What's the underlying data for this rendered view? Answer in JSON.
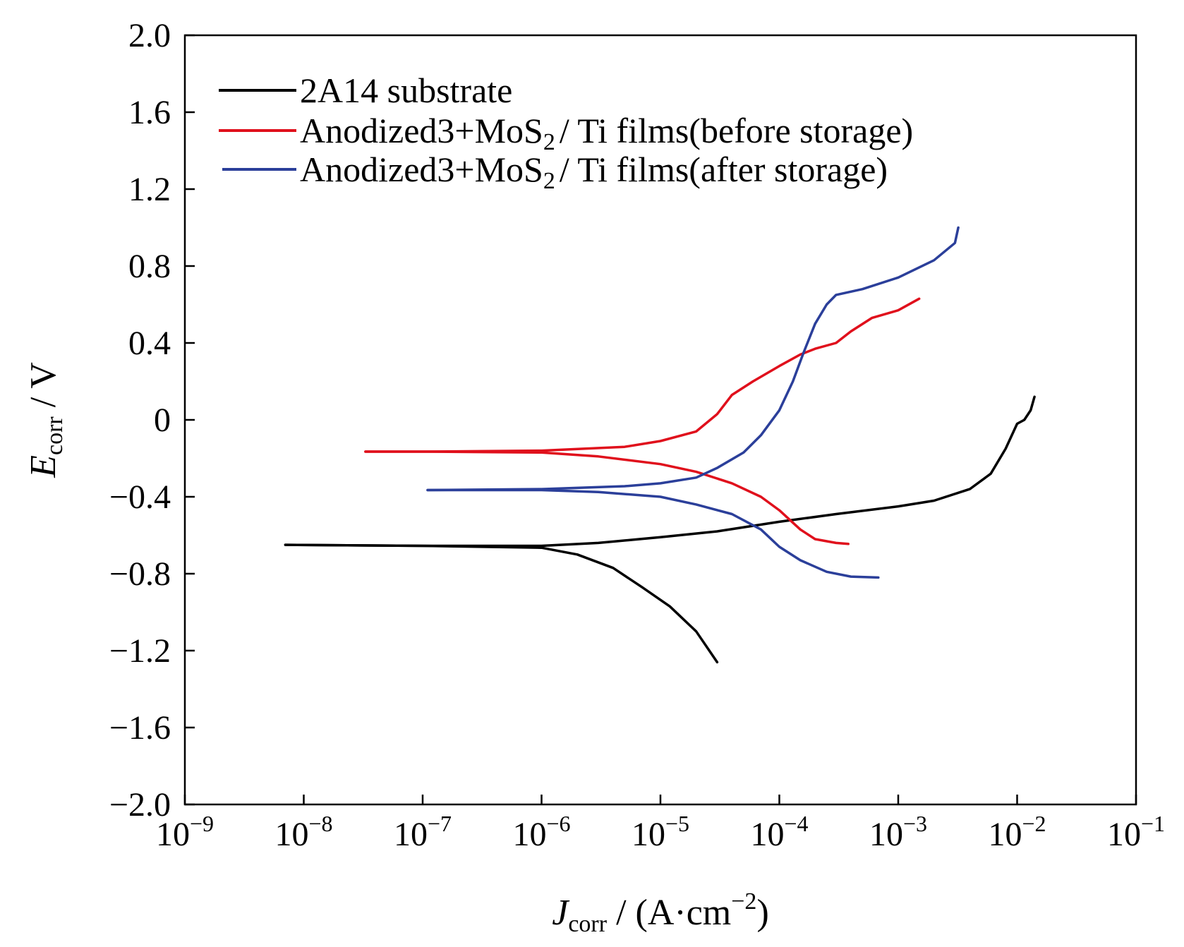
{
  "chart_data": {
    "type": "line",
    "title": "",
    "x_scale": "log",
    "xlim": [
      1e-09,
      0.1
    ],
    "ylim": [
      -2.0,
      2.0
    ],
    "x_ticks": [
      {
        "value": 1e-09,
        "base": "10",
        "exp": "−9"
      },
      {
        "value": 1e-08,
        "base": "10",
        "exp": "−8"
      },
      {
        "value": 1e-07,
        "base": "10",
        "exp": "−7"
      },
      {
        "value": 1e-06,
        "base": "10",
        "exp": "−6"
      },
      {
        "value": 1e-05,
        "base": "10",
        "exp": "−5"
      },
      {
        "value": 0.0001,
        "base": "10",
        "exp": "−4"
      },
      {
        "value": 0.001,
        "base": "10",
        "exp": "−3"
      },
      {
        "value": 0.01,
        "base": "10",
        "exp": "−2"
      },
      {
        "value": 0.1,
        "base": "10",
        "exp": "−1"
      }
    ],
    "y_ticks": [
      {
        "value": 2.0,
        "label": "2.0"
      },
      {
        "value": 1.6,
        "label": "1.6"
      },
      {
        "value": 1.2,
        "label": "1.2"
      },
      {
        "value": 0.8,
        "label": "0.8"
      },
      {
        "value": 0.4,
        "label": "0.4"
      },
      {
        "value": 0.0,
        "label": "0"
      },
      {
        "value": -0.4,
        "label": "−0.4"
      },
      {
        "value": -0.8,
        "label": "−0.8"
      },
      {
        "value": -1.2,
        "label": "−1.2"
      },
      {
        "value": -1.6,
        "label": "−1.6"
      },
      {
        "value": -2.0,
        "label": "−2.0"
      }
    ],
    "xlabel": {
      "main": "J",
      "sub": "corr",
      "rest": " / (A·cm",
      "sup": "−2",
      "end": ")"
    },
    "ylabel": {
      "main": "E",
      "sub": "corr",
      "rest": " / V"
    },
    "legend_position": "top-left",
    "series": [
      {
        "legend": {
          "text": "2A14 substrate"
        },
        "color": "#000000",
        "anodic": [
          [
            7e-09,
            -0.65
          ],
          [
            1e-07,
            -0.655
          ],
          [
            1e-06,
            -0.655
          ],
          [
            3e-06,
            -0.64
          ],
          [
            1e-05,
            -0.61
          ],
          [
            3e-05,
            -0.58
          ],
          [
            0.0001,
            -0.53
          ],
          [
            0.0003,
            -0.49
          ],
          [
            0.001,
            -0.45
          ],
          [
            0.002,
            -0.42
          ],
          [
            0.004,
            -0.36
          ],
          [
            0.006,
            -0.28
          ],
          [
            0.008,
            -0.15
          ],
          [
            0.01,
            -0.02
          ],
          [
            0.0115,
            0.0
          ],
          [
            0.013,
            0.05
          ],
          [
            0.014,
            0.12
          ]
        ],
        "cathodic": [
          [
            7e-09,
            -0.65
          ],
          [
            1e-07,
            -0.655
          ],
          [
            1e-06,
            -0.665
          ],
          [
            2e-06,
            -0.7
          ],
          [
            4e-06,
            -0.77
          ],
          [
            7e-06,
            -0.87
          ],
          [
            1.2e-05,
            -0.97
          ],
          [
            2e-05,
            -1.1
          ],
          [
            3e-05,
            -1.26
          ]
        ]
      },
      {
        "legend": {
          "pre": "Anodized3+MoS",
          "sub": "2",
          "post": "/ Ti films(before storage)"
        },
        "color": "#e0101c",
        "anodic": [
          [
            3.3e-08,
            -0.165
          ],
          [
            1e-07,
            -0.165
          ],
          [
            1e-06,
            -0.16
          ],
          [
            5e-06,
            -0.14
          ],
          [
            1e-05,
            -0.11
          ],
          [
            2e-05,
            -0.06
          ],
          [
            3e-05,
            0.03
          ],
          [
            4e-05,
            0.13
          ],
          [
            6e-05,
            0.2
          ],
          [
            0.0001,
            0.28
          ],
          [
            0.00015,
            0.34
          ],
          [
            0.0002,
            0.37
          ],
          [
            0.0003,
            0.4
          ],
          [
            0.0004,
            0.46
          ],
          [
            0.0006,
            0.53
          ],
          [
            0.001,
            0.57
          ],
          [
            0.0015,
            0.63
          ]
        ],
        "cathodic": [
          [
            3.3e-08,
            -0.165
          ],
          [
            1e-07,
            -0.165
          ],
          [
            1e-06,
            -0.17
          ],
          [
            3e-06,
            -0.19
          ],
          [
            1e-05,
            -0.23
          ],
          [
            2e-05,
            -0.27
          ],
          [
            4e-05,
            -0.33
          ],
          [
            7e-05,
            -0.4
          ],
          [
            0.0001,
            -0.47
          ],
          [
            0.00015,
            -0.57
          ],
          [
            0.0002,
            -0.62
          ],
          [
            0.0003,
            -0.64
          ],
          [
            0.00038,
            -0.645
          ]
        ]
      },
      {
        "legend": {
          "pre": "Anodized3+MoS",
          "sub": "2",
          "post": "/ Ti films(after storage)"
        },
        "color": "#2b3f9a",
        "anodic": [
          [
            1.1e-07,
            -0.365
          ],
          [
            1e-06,
            -0.36
          ],
          [
            5e-06,
            -0.345
          ],
          [
            1e-05,
            -0.33
          ],
          [
            2e-05,
            -0.3
          ],
          [
            3e-05,
            -0.25
          ],
          [
            5e-05,
            -0.17
          ],
          [
            7e-05,
            -0.08
          ],
          [
            0.0001,
            0.05
          ],
          [
            0.00013,
            0.2
          ],
          [
            0.00016,
            0.35
          ],
          [
            0.0002,
            0.5
          ],
          [
            0.00025,
            0.6
          ],
          [
            0.0003,
            0.65
          ],
          [
            0.0005,
            0.68
          ],
          [
            0.001,
            0.74
          ],
          [
            0.002,
            0.83
          ],
          [
            0.003,
            0.92
          ],
          [
            0.0032,
            1.0
          ]
        ],
        "cathodic": [
          [
            1.1e-07,
            -0.365
          ],
          [
            1e-06,
            -0.365
          ],
          [
            3e-06,
            -0.375
          ],
          [
            1e-05,
            -0.4
          ],
          [
            2e-05,
            -0.44
          ],
          [
            4e-05,
            -0.49
          ],
          [
            7e-05,
            -0.57
          ],
          [
            0.0001,
            -0.66
          ],
          [
            0.00015,
            -0.73
          ],
          [
            0.00025,
            -0.79
          ],
          [
            0.0004,
            -0.815
          ],
          [
            0.00068,
            -0.82
          ]
        ]
      }
    ]
  }
}
